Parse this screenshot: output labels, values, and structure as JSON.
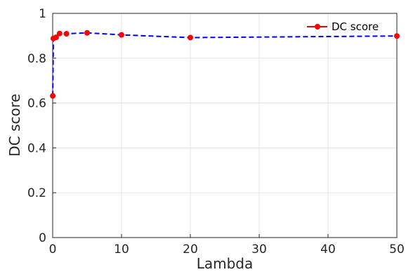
{
  "chart_data": {
    "type": "line",
    "xlabel": "Lambda",
    "ylabel": "DC score",
    "xlim": [
      0,
      50
    ],
    "ylim": [
      0,
      1
    ],
    "x_ticks": [
      "0",
      "10",
      "20",
      "30",
      "40",
      "50"
    ],
    "y_ticks": [
      "0",
      "0.2",
      "0.4",
      "0.6",
      "0.8",
      "1"
    ],
    "grid": true,
    "legend_position": "top-right",
    "series": [
      {
        "name": "DC score",
        "x": [
          0.01,
          0.1,
          0.5,
          1,
          2,
          5,
          10,
          20,
          50
        ],
        "values": [
          0.632,
          0.888,
          0.893,
          0.91,
          0.909,
          0.913,
          0.904,
          0.892,
          0.899
        ],
        "line_color": "#0000ff",
        "line_style": "dashed",
        "marker_color": "#ff0000",
        "legend_line_color": "#ff0000"
      }
    ]
  }
}
